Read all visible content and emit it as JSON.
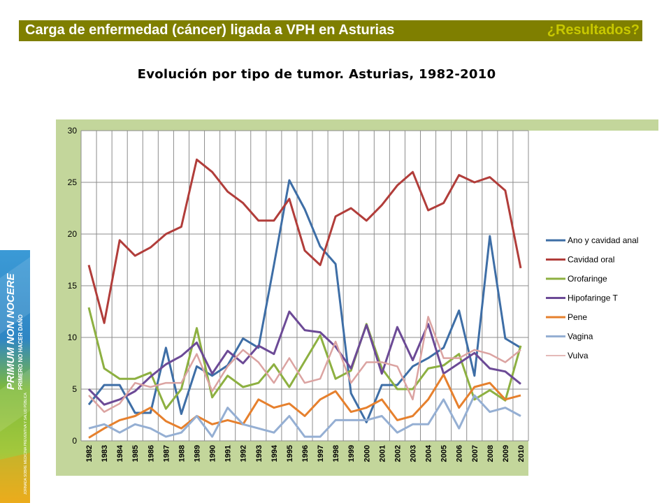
{
  "header": {
    "title": "Carga de enfermedad (cáncer) ligada a VPH en Asturias",
    "right_label": "¿Resultados?"
  },
  "subtitle": "Evolución por tipo de tumor. Asturias, 1982-2010",
  "banner": {
    "main_text": "PRIMUM NON NOCERE",
    "sub_text": "PRIMERO NO HACER DAÑO",
    "small_text": "JORNADA SOBRE MEDICINA PREVENTIVA Y SALUD PÚBLICA"
  },
  "colors": {
    "header_bg": "#7f7f00",
    "header_right_text": "#c8c800",
    "chart_bg": "#c3d69b"
  },
  "chart_data": {
    "type": "line",
    "title": "",
    "xlabel": "",
    "ylabel": "",
    "ylim": [
      0,
      30
    ],
    "yticks": [
      0,
      5,
      10,
      15,
      20,
      25,
      30
    ],
    "grid": true,
    "legend_position": "right",
    "x": [
      "1982",
      "1983",
      "1984",
      "1985",
      "1986",
      "1987",
      "1988",
      "1989",
      "1990",
      "1991",
      "1992",
      "1993",
      "1994",
      "1995",
      "1996",
      "1997",
      "1998",
      "1999",
      "2000",
      "2001",
      "2002",
      "2003",
      "2004",
      "2005",
      "2006",
      "2007",
      "2008",
      "2009",
      "2010"
    ],
    "series": [
      {
        "name": "Ano y cavidad anal",
        "color": "#3e6ea6",
        "values": [
          3.5,
          5.4,
          5.4,
          2.7,
          2.7,
          9.0,
          2.6,
          7.2,
          6.3,
          7.3,
          9.9,
          9.0,
          17.0,
          25.2,
          22.4,
          18.8,
          17.1,
          4.6,
          1.8,
          5.4,
          5.4,
          7.2,
          8.0,
          9.0,
          12.6,
          6.3,
          19.8,
          9.9,
          9.0
        ]
      },
      {
        "name": "Cavidad oral",
        "color": "#b13d3a",
        "values": [
          17.0,
          11.4,
          19.4,
          17.9,
          18.7,
          20.0,
          20.7,
          27.2,
          26.0,
          24.1,
          23.0,
          21.3,
          21.3,
          23.4,
          18.4,
          17.0,
          21.7,
          22.5,
          21.3,
          22.8,
          24.7,
          26.0,
          22.3,
          23.0,
          25.7,
          25.0,
          25.5,
          24.2,
          16.7
        ]
      },
      {
        "name": "Orofaringe",
        "color": "#8db041",
        "values": [
          12.9,
          7.0,
          6.0,
          6.0,
          6.6,
          3.1,
          5.0,
          10.9,
          4.2,
          6.3,
          5.2,
          5.6,
          7.4,
          5.2,
          7.7,
          10.2,
          6.0,
          6.8,
          11.3,
          7.0,
          5.0,
          5.0,
          7.0,
          7.3,
          8.4,
          4.0,
          4.9,
          3.9,
          9.2
        ]
      },
      {
        "name": "Hipofaringe T",
        "color": "#6c4a96",
        "values": [
          5.0,
          3.5,
          4.0,
          4.8,
          6.2,
          7.4,
          8.2,
          9.5,
          6.5,
          8.7,
          7.5,
          9.2,
          8.4,
          12.5,
          10.7,
          10.5,
          9.1,
          7.0,
          11.2,
          6.5,
          11.0,
          7.8,
          11.3,
          6.5,
          7.5,
          8.5,
          7.0,
          6.7,
          5.5
        ]
      },
      {
        "name": "Pene",
        "color": "#e6802d",
        "values": [
          0.3,
          1.2,
          2.0,
          2.4,
          3.2,
          1.9,
          1.2,
          2.4,
          1.6,
          2.0,
          1.6,
          4.0,
          3.2,
          3.6,
          2.4,
          4.0,
          4.8,
          2.8,
          3.2,
          4.0,
          2.0,
          2.4,
          4.0,
          6.4,
          3.2,
          5.2,
          5.6,
          4.0,
          4.4
        ]
      },
      {
        "name": "Vagina",
        "color": "#95afd3",
        "values": [
          1.2,
          1.6,
          0.8,
          1.6,
          1.2,
          0.4,
          0.8,
          2.4,
          0.4,
          3.2,
          1.6,
          1.2,
          0.8,
          2.4,
          0.4,
          0.4,
          2.0,
          2.0,
          2.0,
          2.4,
          0.8,
          1.6,
          1.6,
          4.0,
          1.2,
          4.4,
          2.8,
          3.2,
          2.4
        ]
      },
      {
        "name": "Vulva",
        "color": "#dba3a1",
        "values": [
          4.4,
          2.8,
          3.6,
          5.6,
          5.2,
          5.6,
          5.6,
          8.4,
          4.8,
          7.2,
          8.8,
          7.6,
          5.6,
          8.0,
          5.6,
          6.0,
          9.6,
          5.6,
          7.6,
          7.6,
          7.2,
          4.0,
          12.0,
          8.0,
          8.0,
          8.8,
          8.4,
          7.6,
          8.8
        ]
      }
    ]
  }
}
